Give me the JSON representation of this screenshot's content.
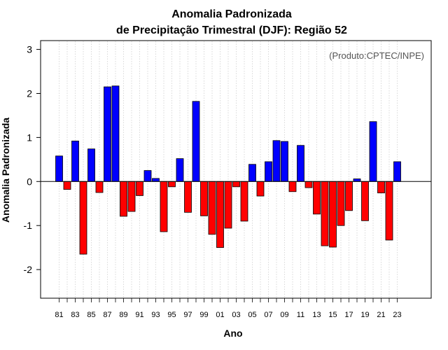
{
  "chart_data": {
    "type": "bar",
    "title_line1": "Anomalia Padronizada",
    "title_line2": "de Precipitação Trimestral (DJF): Região 52",
    "xlabel": "Ano",
    "ylabel": "Anomalia Padronizada",
    "credit": "(Produto:CPTEC/INPE)",
    "ylim": [
      -2.65,
      3.2
    ],
    "yticks": [
      "-2",
      "-1",
      "0",
      "1",
      "2",
      "3"
    ],
    "ytick_values": [
      -2,
      -1,
      0,
      1,
      2,
      3
    ],
    "grid": "vertical dotted",
    "positive_color": "#0000ff",
    "negative_color": "#ff0000",
    "categories": [
      "81",
      "82",
      "83",
      "84",
      "85",
      "86",
      "87",
      "88",
      "89",
      "90",
      "91",
      "92",
      "93",
      "94",
      "95",
      "96",
      "97",
      "98",
      "99",
      "00",
      "01",
      "02",
      "03",
      "04",
      "05",
      "06",
      "07",
      "08",
      "09",
      "10",
      "11",
      "12",
      "13",
      "14",
      "15",
      "16",
      "17",
      "18",
      "19",
      "20",
      "21",
      "22",
      "23"
    ],
    "xtick_labels": [
      "81",
      "83",
      "85",
      "87",
      "89",
      "91",
      "93",
      "95",
      "97",
      "99",
      "01",
      "03",
      "05",
      "07",
      "09",
      "11",
      "13",
      "15",
      "17",
      "19",
      "21",
      "23"
    ],
    "values": [
      0.58,
      -0.18,
      0.92,
      -1.65,
      0.74,
      -0.25,
      2.15,
      2.17,
      -0.79,
      -0.68,
      -0.32,
      0.25,
      0.07,
      -1.14,
      -0.12,
      0.52,
      -0.7,
      1.82,
      -0.78,
      -1.2,
      -1.5,
      -1.06,
      -0.12,
      -0.9,
      0.39,
      -0.33,
      0.45,
      0.93,
      0.91,
      -0.23,
      0.82,
      -0.14,
      -0.74,
      -1.46,
      -1.49,
      -1.0,
      -0.66,
      0.06,
      -0.89,
      1.36,
      -0.26,
      -1.33,
      0.45
    ]
  }
}
